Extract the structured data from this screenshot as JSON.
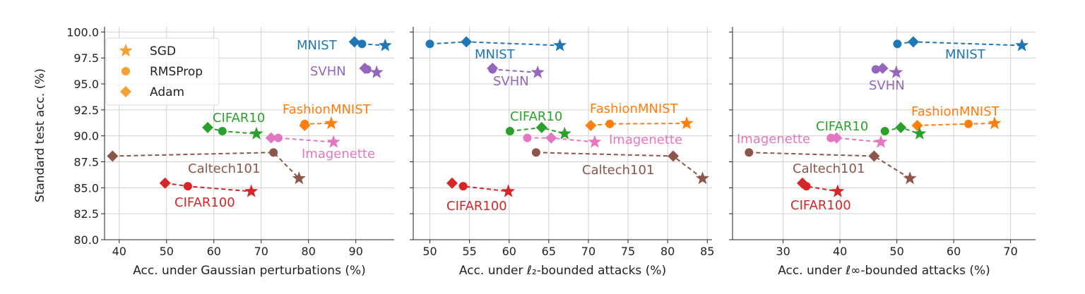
{
  "chart_data": [
    {
      "type": "scatter",
      "xlabel": "Acc. under Gaussian perturbations (%)",
      "ylabel": "Standard test acc. (%)",
      "xlim": [
        36.9,
        98.1
      ],
      "ylim": [
        80,
        100.5
      ],
      "xticks": [
        40,
        50,
        60,
        70,
        80,
        90
      ],
      "yticks": [
        "80.0",
        "82.5",
        "85.0",
        "87.5",
        "90.0",
        "92.5",
        "95.0",
        "97.5",
        "100.0"
      ],
      "grid": true,
      "legend": {
        "placement": "top-left",
        "entries": [
          "SGD",
          "RMSProp",
          "Adam"
        ]
      },
      "series": [
        {
          "name": "MNIST",
          "color": "#1f77b4",
          "points": {
            "Adam": [
              89.7,
              99.05
            ],
            "RMSProp": [
              91.3,
              98.85
            ],
            "SGD": [
              96.2,
              98.7
            ]
          }
        },
        {
          "name": "SVHN",
          "color": "#9467bd",
          "points": {
            "Adam": [
              91.9,
              96.5
            ],
            "RMSProp": [
              92.4,
              96.4
            ],
            "SGD": [
              94.4,
              96.1
            ]
          }
        },
        {
          "name": "FashionMNIST",
          "color": "#ff7f0e",
          "points": {
            "Adam": [
              79.2,
              91.0
            ],
            "RMSProp": [
              79.2,
              91.15
            ],
            "SGD": [
              84.8,
              91.2
            ]
          }
        },
        {
          "name": "CIFAR10",
          "color": "#2ca02c",
          "points": {
            "Adam": [
              58.7,
              90.8
            ],
            "RMSProp": [
              61.8,
              90.45
            ],
            "SGD": [
              69.0,
              90.2
            ]
          }
        },
        {
          "name": "Imagenette",
          "color": "#e377c2",
          "points": {
            "Adam": [
              72.1,
              89.8
            ],
            "RMSProp": [
              73.6,
              89.8
            ],
            "SGD": [
              85.3,
              89.4
            ]
          }
        },
        {
          "name": "Caltech101",
          "color": "#8c564b",
          "points": {
            "Adam": [
              38.6,
              88.05
            ],
            "RMSProp": [
              72.6,
              88.4
            ],
            "SGD": [
              78.0,
              85.9
            ]
          }
        },
        {
          "name": "CIFAR100",
          "color": "#d62728",
          "points": {
            "Adam": [
              49.7,
              85.45
            ],
            "RMSProp": [
              54.5,
              85.15
            ],
            "SGD": [
              67.9,
              84.65
            ]
          }
        }
      ]
    },
    {
      "type": "scatter",
      "xlabel": "Acc. under ℓ₂-bounded attacks (%)",
      "xlim": [
        47.9,
        85.6
      ],
      "ylim": [
        80,
        100.5
      ],
      "xticks": [
        50,
        55,
        60,
        65,
        70,
        75,
        80,
        85
      ],
      "grid": true,
      "series": [
        {
          "name": "MNIST",
          "color": "#1f77b4",
          "points": {
            "Adam": [
              54.6,
              99.05
            ],
            "RMSProp": [
              50.0,
              98.85
            ],
            "SGD": [
              66.4,
              98.7
            ]
          }
        },
        {
          "name": "SVHN",
          "color": "#9467bd",
          "points": {
            "Adam": [
              57.9,
              96.5
            ],
            "RMSProp": [
              57.9,
              96.4
            ],
            "SGD": [
              63.6,
              96.1
            ]
          }
        },
        {
          "name": "FashionMNIST",
          "color": "#ff7f0e",
          "points": {
            "Adam": [
              70.3,
              91.0
            ],
            "RMSProp": [
              72.7,
              91.15
            ],
            "SGD": [
              82.4,
              91.2
            ]
          }
        },
        {
          "name": "CIFAR10",
          "color": "#2ca02c",
          "points": {
            "Adam": [
              64.1,
              90.8
            ],
            "RMSProp": [
              60.1,
              90.45
            ],
            "SGD": [
              67.0,
              90.2
            ]
          }
        },
        {
          "name": "Imagenette",
          "color": "#e377c2",
          "points": {
            "Adam": [
              65.3,
              89.8
            ],
            "RMSProp": [
              62.3,
              89.8
            ],
            "SGD": [
              70.8,
              89.4
            ]
          }
        },
        {
          "name": "Caltech101",
          "color": "#8c564b",
          "points": {
            "Adam": [
              80.7,
              88.05
            ],
            "RMSProp": [
              63.4,
              88.4
            ],
            "SGD": [
              84.4,
              85.9
            ]
          }
        },
        {
          "name": "CIFAR100",
          "color": "#d62728",
          "points": {
            "Adam": [
              52.8,
              85.45
            ],
            "RMSProp": [
              54.2,
              85.15
            ],
            "SGD": [
              59.9,
              84.65
            ]
          }
        }
      ]
    },
    {
      "type": "scatter",
      "xlabel": "Acc. under ℓ∞-bounded attacks (%)",
      "xlim": [
        21.1,
        74.4
      ],
      "ylim": [
        80,
        100.5
      ],
      "xticks": [
        30,
        40,
        50,
        60,
        70
      ],
      "grid": true,
      "series": [
        {
          "name": "MNIST",
          "color": "#1f77b4",
          "points": {
            "Adam": [
              52.9,
              99.05
            ],
            "RMSProp": [
              50.1,
              98.85
            ],
            "SGD": [
              72.0,
              98.7
            ]
          }
        },
        {
          "name": "SVHN",
          "color": "#9467bd",
          "points": {
            "Adam": [
              47.5,
              96.5
            ],
            "RMSProp": [
              46.3,
              96.4
            ],
            "SGD": [
              49.9,
              96.1
            ]
          }
        },
        {
          "name": "FashionMNIST",
          "color": "#ff7f0e",
          "points": {
            "Adam": [
              53.6,
              91.0
            ],
            "RMSProp": [
              62.6,
              91.15
            ],
            "SGD": [
              67.2,
              91.2
            ]
          }
        },
        {
          "name": "CIFAR10",
          "color": "#2ca02c",
          "points": {
            "Adam": [
              50.7,
              90.8
            ],
            "RMSProp": [
              47.9,
              90.45
            ],
            "SGD": [
              54.0,
              90.2
            ]
          }
        },
        {
          "name": "Imagenette",
          "color": "#e377c2",
          "points": {
            "Adam": [
              39.4,
              89.8
            ],
            "RMSProp": [
              38.4,
              89.8
            ],
            "SGD": [
              47.2,
              89.4
            ]
          }
        },
        {
          "name": "Caltech101",
          "color": "#8c564b",
          "points": {
            "Adam": [
              46.0,
              88.05
            ],
            "RMSProp": [
              24.0,
              88.4
            ],
            "SGD": [
              52.3,
              85.9
            ]
          }
        },
        {
          "name": "CIFAR100",
          "color": "#d62728",
          "points": {
            "Adam": [
              33.4,
              85.45
            ],
            "RMSProp": [
              34.1,
              85.15
            ],
            "SGD": [
              39.6,
              84.65
            ]
          }
        }
      ]
    }
  ],
  "legend_marker_color": "#f5a033"
}
